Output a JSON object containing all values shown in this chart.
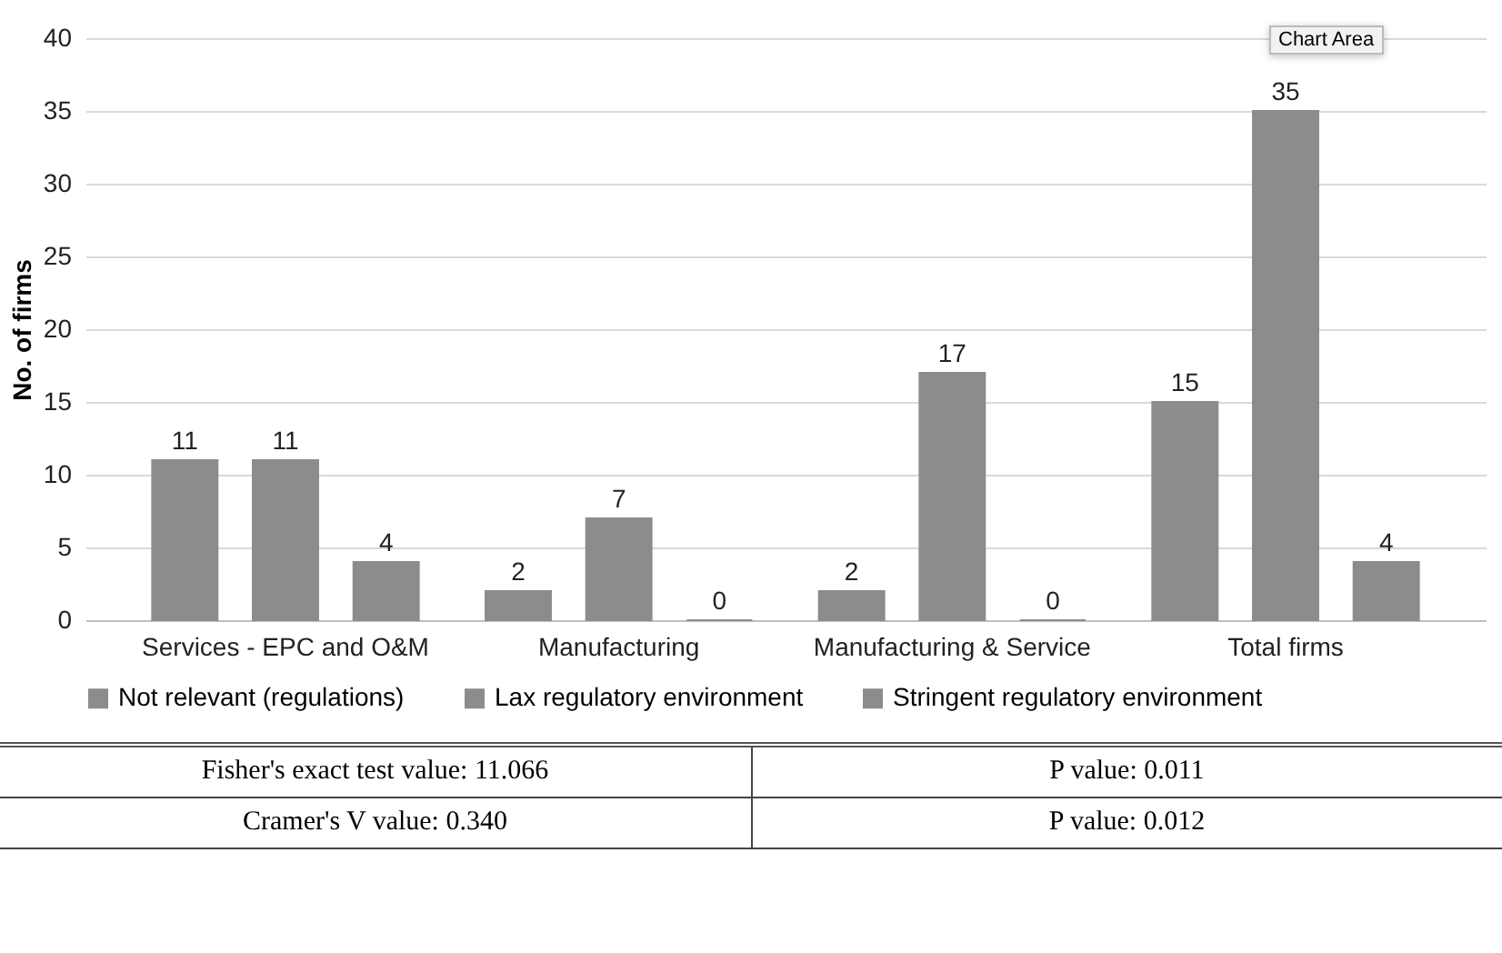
{
  "chart_data": {
    "type": "bar",
    "ylabel": "No. of firms",
    "categories": [
      "Services - EPC and O&M",
      "Manufacturing",
      "Manufacturing & Service",
      "Total firms"
    ],
    "series": [
      {
        "name": "Not relevant (regulations)",
        "color": "#8c8c8c",
        "values": [
          11,
          2,
          2,
          15
        ]
      },
      {
        "name": "Lax regulatory environment",
        "color": "#8c8c8c",
        "values": [
          11,
          7,
          17,
          35
        ]
      },
      {
        "name": "Stringent regulatory environment",
        "color": "#8c8c8c",
        "values": [
          4,
          0,
          0,
          4
        ]
      }
    ],
    "ylim": [
      0,
      40
    ],
    "yticks": [
      0,
      5,
      10,
      15,
      20,
      25,
      30,
      35,
      40
    ],
    "grid": "y",
    "legend": "bottom",
    "data_labels": true,
    "annotations": [
      "Fisher's exact test value: 11.066",
      "P value: 0.011",
      "Cramer's V value: 0.340",
      "P value: 0.012",
      "Chart Area"
    ]
  }
}
